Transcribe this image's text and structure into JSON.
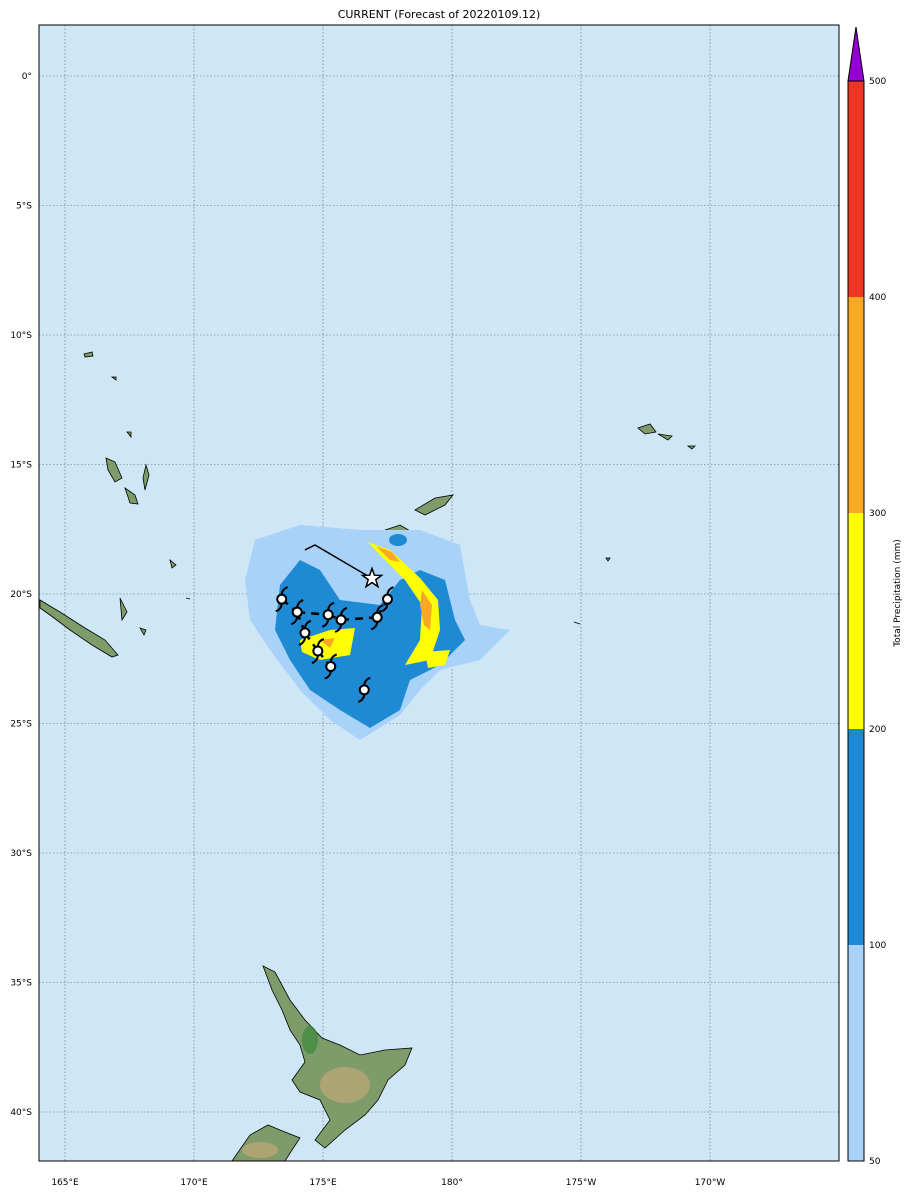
{
  "title": "CURRENT (Forecast of 20220109.12)",
  "map": {
    "ocean_color": "#cfe6f6",
    "lon_labels": [
      "165°E",
      "170°E",
      "175°E",
      "180°",
      "175°W",
      "170°W"
    ],
    "lat_labels": [
      "0°",
      "5°S",
      "10°S",
      "15°S",
      "20°S",
      "25°S",
      "30°S",
      "35°S",
      "40°S"
    ],
    "gridlines": true,
    "extent": {
      "lon": [
        164,
        195
      ],
      "lat": [
        2,
        -42
      ]
    }
  },
  "colorbar": {
    "label": "Total Precipitation (mm)",
    "ticks": [
      "50",
      "100",
      "200",
      "300",
      "400",
      "500"
    ],
    "colors": [
      "#a8d2f8",
      "#1e8ad4",
      "#ffff00",
      "#f9a825",
      "#ee3424",
      "#9400d3"
    ],
    "extend": "max"
  },
  "storm_track": {
    "positions": [
      {
        "lon": 173.4,
        "lat": -20.2
      },
      {
        "lon": 174.0,
        "lat": -20.7
      },
      {
        "lon": 174.3,
        "lat": -21.5
      },
      {
        "lon": 174.8,
        "lat": -22.2
      },
      {
        "lon": 175.3,
        "lat": -22.8
      },
      {
        "lon": 176.6,
        "lat": -23.7
      },
      {
        "lon": 175.2,
        "lat": -20.8
      },
      {
        "lon": 175.7,
        "lat": -21.0
      },
      {
        "lon": 177.1,
        "lat": -20.9
      },
      {
        "lon": 177.5,
        "lat": -20.2
      }
    ],
    "current_position": {
      "lon": 176.9,
      "lat": -19.4
    },
    "observed_track_start": {
      "lon": 174.3,
      "lat": -18.3
    }
  }
}
